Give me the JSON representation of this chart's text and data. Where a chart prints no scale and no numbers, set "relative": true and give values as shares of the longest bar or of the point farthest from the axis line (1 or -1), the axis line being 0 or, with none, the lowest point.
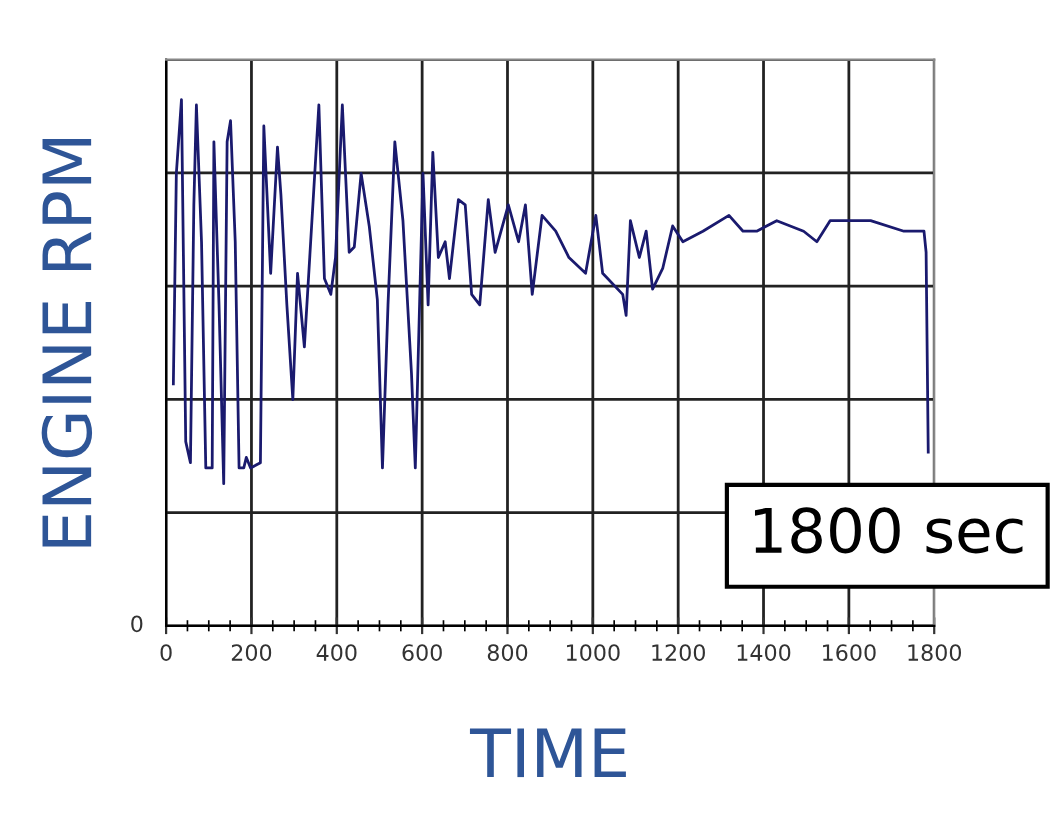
{
  "chart_data": {
    "type": "line",
    "xlabel": "TIME",
    "ylabel": "ENGINE RPM",
    "relative": true,
    "annotations": [
      "1800 sec",
      "0"
    ],
    "xlim": [
      0,
      1800
    ],
    "xticks": [
      0,
      200,
      400,
      600,
      800,
      1000,
      1200,
      1400,
      1600,
      1800
    ],
    "grid": true,
    "marker": "none",
    "line_style": "solid",
    "series": [
      {
        "color": "#1a1a6e",
        "x": [
          17,
          24,
          36,
          46,
          57,
          65,
          71,
          83,
          93,
          108,
          112,
          124,
          135,
          143,
          151,
          162,
          171,
          182,
          188,
          198,
          221,
          229,
          245,
          261,
          269,
          283,
          297,
          308,
          324,
          358,
          371,
          386,
          397,
          413,
          429,
          441,
          457,
          476,
          495,
          507,
          520,
          536,
          555,
          575,
          584,
          602,
          614,
          625,
          638,
          654,
          664,
          685,
          701,
          716,
          735,
          755,
          771,
          802,
          826,
          842,
          858,
          881,
          913,
          944,
          983,
          1007,
          1023,
          1070,
          1078,
          1088,
          1109,
          1125,
          1140,
          1164,
          1187,
          1211,
          1258,
          1319,
          1352,
          1384,
          1431,
          1494,
          1525,
          1556,
          1604,
          1651,
          1729,
          1776,
          1781,
          1786
        ],
        "values": [
          0.46,
          0.86,
          1.0,
          0.35,
          0.31,
          0.8,
          0.99,
          0.73,
          0.3,
          0.3,
          0.92,
          0.61,
          0.27,
          0.92,
          0.96,
          0.73,
          0.3,
          0.3,
          0.32,
          0.3,
          0.31,
          0.95,
          0.67,
          0.91,
          0.82,
          0.61,
          0.43,
          0.67,
          0.53,
          0.99,
          0.66,
          0.63,
          0.7,
          0.99,
          0.71,
          0.72,
          0.86,
          0.76,
          0.62,
          0.3,
          0.61,
          0.92,
          0.77,
          0.48,
          0.3,
          0.86,
          0.61,
          0.9,
          0.7,
          0.73,
          0.66,
          0.81,
          0.8,
          0.63,
          0.61,
          0.81,
          0.71,
          0.8,
          0.73,
          0.8,
          0.63,
          0.78,
          0.75,
          0.7,
          0.67,
          0.78,
          0.67,
          0.63,
          0.59,
          0.77,
          0.7,
          0.75,
          0.64,
          0.68,
          0.76,
          0.73,
          0.75,
          0.78,
          0.75,
          0.75,
          0.77,
          0.75,
          0.73,
          0.77,
          0.77,
          0.77,
          0.75,
          0.75,
          0.71,
          0.33
        ]
      }
    ]
  }
}
